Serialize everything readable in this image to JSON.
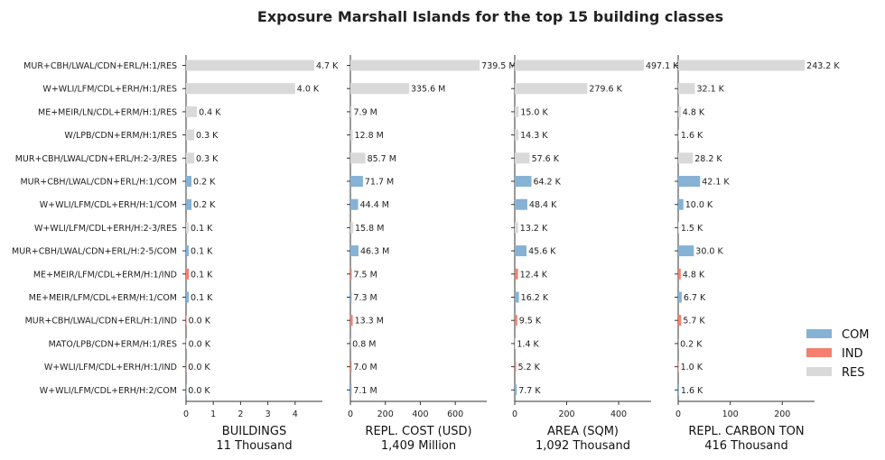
{
  "chart_data": {
    "type": "bar",
    "title": "Exposure Marshall Islands for the top 15 building classes",
    "categories": [
      "MUR+CBH/LWAL/CDN+ERL/H:1/RES",
      "W+WLI/LFM/CDL+ERH/H:1/RES",
      "ME+MEIR/LN/CDL+ERM/H:1/RES",
      "W/LPB/CDN+ERM/H:1/RES",
      "MUR+CBH/LWAL/CDN+ERL/H:2-3/RES",
      "MUR+CBH/LWAL/CDN+ERL/H:1/COM",
      "W+WLI/LFM/CDL+ERH/H:1/COM",
      "W+WLI/LFM/CDL+ERH/H:2-3/RES",
      "MUR+CBH/LWAL/CDN+ERL/H:2-5/COM",
      "ME+MEIR/LFM/CDL+ERM/H:1/IND",
      "ME+MEIR/LFM/CDL+ERM/H:1/COM",
      "MUR+CBH/LWAL/CDN+ERL/H:1/IND",
      "MATO/LPB/CDN+ERM/H:1/RES",
      "W+WLI/LFM/CDL+ERH/H:1/IND",
      "W+WLI/LFM/CDL+ERH/H:2/COM"
    ],
    "occupancy": [
      "RES",
      "RES",
      "RES",
      "RES",
      "RES",
      "COM",
      "COM",
      "RES",
      "COM",
      "IND",
      "COM",
      "IND",
      "RES",
      "IND",
      "COM"
    ],
    "colors": {
      "COM": "#86b2d4",
      "IND": "#f47f6e",
      "RES": "#d9d9d9"
    },
    "legend": {
      "position": "lower-right",
      "entries": [
        "COM",
        "IND",
        "RES"
      ]
    },
    "panels": [
      {
        "xlabel": "BUILDINGS",
        "total_label": "11 Thousand",
        "xlim": [
          0,
          5
        ],
        "ticks": [
          0,
          1,
          2,
          3,
          4
        ],
        "values": [
          4.7,
          4.0,
          0.4,
          0.3,
          0.3,
          0.2,
          0.2,
          0.1,
          0.1,
          0.1,
          0.1,
          0.02,
          0.02,
          0.01,
          0.01
        ],
        "labels": [
          "4.7 K",
          "4.0 K",
          "0.4 K",
          "0.3 K",
          "0.3 K",
          "0.2 K",
          "0.2 K",
          "0.1 K",
          "0.1 K",
          "0.1 K",
          "0.1 K",
          "0.0 K",
          "0.0 K",
          "0.0 K",
          "0.0 K"
        ]
      },
      {
        "xlabel": "REPL. COST (USD)",
        "total_label": "1,409 Million",
        "xlim": [
          0,
          780
        ],
        "ticks": [
          0,
          200,
          400,
          600
        ],
        "values": [
          739.5,
          335.6,
          7.9,
          12.8,
          85.7,
          71.7,
          44.4,
          15.8,
          46.3,
          7.5,
          7.3,
          13.3,
          0.8,
          7.0,
          7.1
        ],
        "labels": [
          "739.5 M",
          "335.6 M",
          "7.9 M",
          "12.8 M",
          "85.7 M",
          "71.7 M",
          "44.4 M",
          "15.8 M",
          "46.3 M",
          "7.5 M",
          "7.3 M",
          "13.3 M",
          "0.8 M",
          "7.0 M",
          "7.1 M"
        ]
      },
      {
        "xlabel": "AREA (SQM)",
        "total_label": "1,092 Thousand",
        "xlim": [
          0,
          525
        ],
        "ticks": [
          0,
          200,
          400
        ],
        "values": [
          497.1,
          279.6,
          15.0,
          14.3,
          57.6,
          64.2,
          48.4,
          13.2,
          45.6,
          12.4,
          16.2,
          9.5,
          1.4,
          5.2,
          7.7
        ],
        "labels": [
          "497.1 K",
          "279.6 K",
          "15.0 K",
          "14.3 K",
          "57.6 K",
          "64.2 K",
          "48.4 K",
          "13.2 K",
          "45.6 K",
          "12.4 K",
          "16.2 K",
          "9.5 K",
          "1.4 K",
          "5.2 K",
          "7.7 K"
        ]
      },
      {
        "xlabel": "REPL. CARBON TON",
        "total_label": "416 Thousand",
        "xlim": [
          0,
          262
        ],
        "ticks": [
          0,
          100,
          200
        ],
        "values": [
          243.2,
          32.1,
          4.8,
          1.6,
          28.2,
          42.1,
          10.0,
          1.5,
          30.0,
          4.8,
          6.7,
          5.7,
          0.2,
          1.0,
          1.6
        ],
        "labels": [
          "243.2 K",
          "32.1 K",
          "4.8 K",
          "1.6 K",
          "28.2 K",
          "42.1 K",
          "10.0 K",
          "1.5 K",
          "30.0 K",
          "4.8 K",
          "6.7 K",
          "5.7 K",
          "0.2 K",
          "1.0 K",
          "1.6 K"
        ]
      }
    ]
  }
}
